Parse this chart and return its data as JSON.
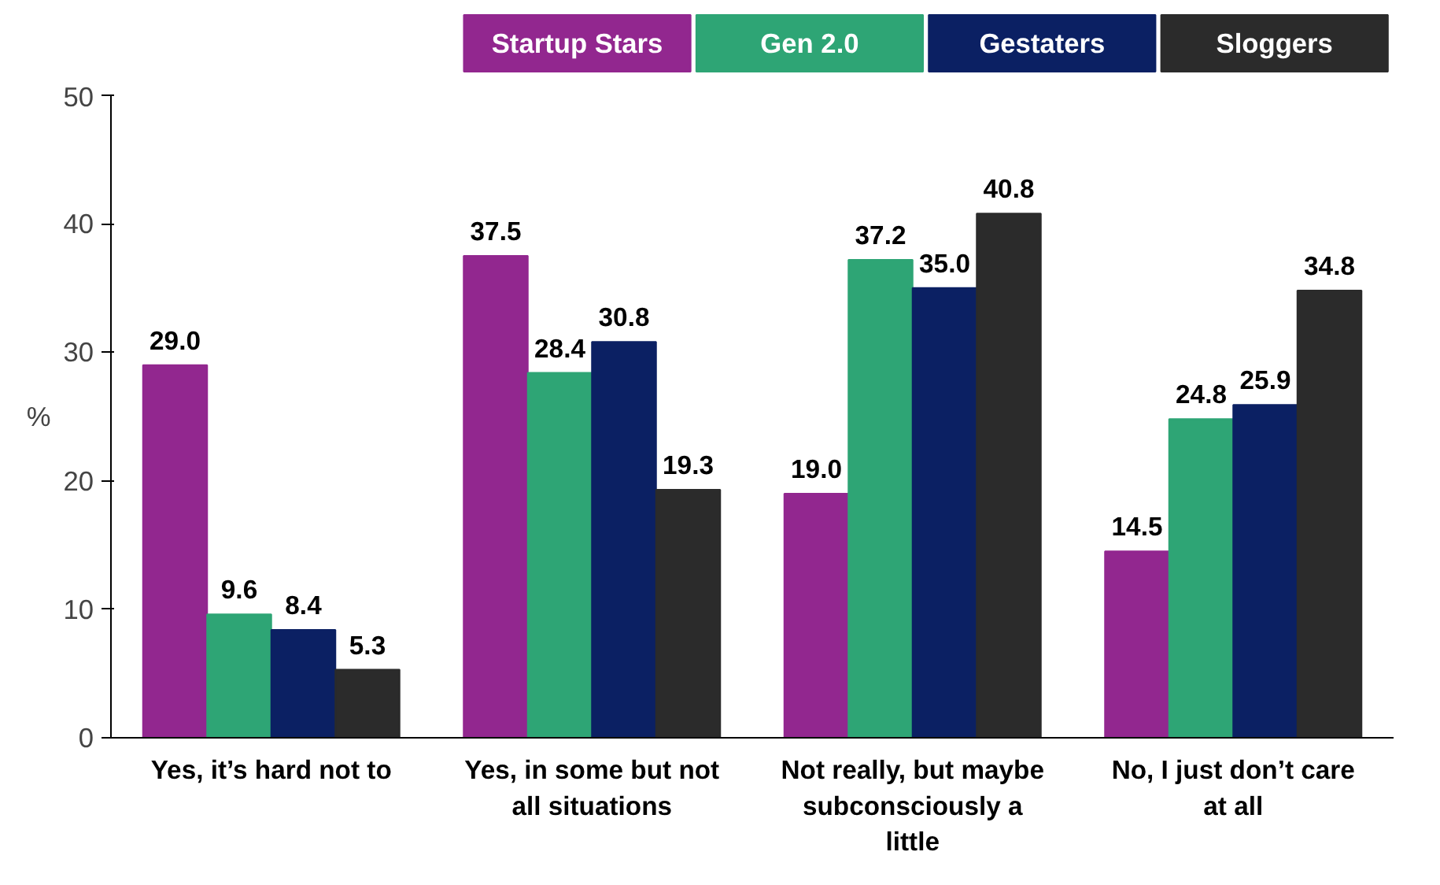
{
  "chart_data": {
    "type": "bar",
    "ylabel": "%",
    "categories": [
      "Yes, it’s hard not to",
      "Yes, in some but not all situations",
      "Not really, but maybe subconsciously a little",
      "No, I just don’t care at all"
    ],
    "series": [
      {
        "name": "Startup Stars",
        "color": "#92278f",
        "values": [
          29.0,
          37.5,
          19.0,
          14.5
        ],
        "value_labels": [
          "29.0",
          "37.5",
          "19.0",
          "14.5"
        ]
      },
      {
        "name": "Gen 2.0",
        "color": "#2ea575",
        "values": [
          9.6,
          28.4,
          37.2,
          24.8
        ],
        "value_labels": [
          "9.6",
          "28.4",
          "37.2",
          "24.8"
        ]
      },
      {
        "name": "Gestaters",
        "color": "#0b2063",
        "values": [
          8.4,
          30.8,
          35.0,
          25.9
        ],
        "value_labels": [
          "8.4",
          "30.8",
          "35.0",
          "25.9"
        ]
      },
      {
        "name": "Sloggers",
        "color": "#2b2b2b",
        "values": [
          5.3,
          19.3,
          40.8,
          34.8
        ],
        "value_labels": [
          "5.3",
          "19.3",
          "40.8",
          "34.8"
        ]
      }
    ],
    "ylim": [
      0,
      50
    ],
    "yticks": [
      0,
      10,
      20,
      30,
      40,
      50
    ],
    "grid": false,
    "legend": "top"
  }
}
